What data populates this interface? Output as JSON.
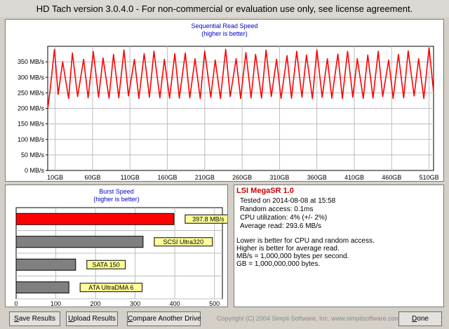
{
  "window": {
    "title": "HD Tach version 3.0.4.0  - For non-commercial or evaluation use only, see license agreement."
  },
  "sequential": {
    "title": "Sequential Read Speed",
    "subtitle": "(higher is better)"
  },
  "burst": {
    "title": "Burst Speed",
    "subtitle": "(higher is better)"
  },
  "chart_data": [
    {
      "type": "line",
      "title": "Sequential Read Speed",
      "subtitle": "(higher is better)",
      "x_ticks": [
        "10GB",
        "60GB",
        "110GB",
        "160GB",
        "210GB",
        "260GB",
        "310GB",
        "360GB",
        "410GB",
        "460GB",
        "510GB"
      ],
      "y_ticks": [
        "0 MB/s",
        "50 MB/s",
        "100 MB/s",
        "150 MB/s",
        "200 MB/s",
        "250 MB/s",
        "300 MB/s",
        "350 MB/s"
      ],
      "xlim": [
        0,
        516
      ],
      "ylim": [
        0,
        400
      ],
      "grid": true,
      "series": [
        {
          "color": "#ff0000",
          "x": [
            0,
            3,
            9,
            14,
            20,
            28,
            33,
            40,
            48,
            54,
            61,
            68,
            74,
            82,
            88,
            95,
            102,
            108,
            116,
            122,
            129,
            136,
            142,
            150,
            156,
            163,
            170,
            176,
            184,
            190,
            197,
            204,
            210,
            218,
            224,
            231,
            238,
            244,
            252,
            258,
            265,
            272,
            278,
            286,
            292,
            299,
            306,
            312,
            320,
            326,
            333,
            340,
            346,
            354,
            360,
            367,
            374,
            380,
            388,
            394,
            401,
            408,
            414,
            422,
            428,
            435,
            442,
            448,
            456,
            462,
            469,
            476,
            482,
            490,
            496,
            503,
            510,
            516
          ],
          "y": [
            198,
            255,
            390,
            245,
            350,
            232,
            378,
            238,
            358,
            234,
            383,
            236,
            362,
            233,
            374,
            234,
            388,
            240,
            358,
            232,
            376,
            236,
            384,
            234,
            358,
            233,
            376,
            233,
            378,
            234,
            360,
            232,
            384,
            236,
            356,
            232,
            390,
            238,
            360,
            232,
            380,
            234,
            374,
            233,
            388,
            238,
            358,
            232,
            370,
            233,
            384,
            236,
            372,
            232,
            388,
            236,
            360,
            233,
            375,
            232,
            384,
            236,
            360,
            232,
            372,
            233,
            384,
            238,
            356,
            232,
            374,
            234,
            385,
            240,
            360,
            232,
            395,
            253
          ]
        }
      ]
    },
    {
      "type": "bar",
      "orientation": "horizontal",
      "title": "Burst Speed",
      "subtitle": "(higher is better)",
      "x_ticks": [
        "0",
        "100",
        "200",
        "300",
        "400",
        "500"
      ],
      "xlim": [
        0,
        520
      ],
      "grid": true,
      "categories": [
        "397.8 MB/s",
        "SCSI Ultra320",
        "SATA 150",
        "ATA UltraDMA 6"
      ],
      "values": [
        397.8,
        320,
        150,
        133
      ],
      "colors": [
        "#ff0000",
        "#808080",
        "#808080",
        "#808080"
      ]
    }
  ],
  "info": {
    "drive_name": "LSI MegaSR 1.0",
    "tested_on": "Tested on 2014-08-08 at 15:58",
    "random_access": "Random access: 0.1ms",
    "cpu_utilization": "CPU utilization: 4% (+/- 2%)",
    "average_read": "Average read: 293.6 MB/s",
    "note1": "Lower is better for CPU and random access.",
    "note2": "Higher is better for average read.",
    "note3": "MB/s = 1,000,000 bytes per second.",
    "note4": "GB = 1,000,000,000 bytes."
  },
  "buttons": {
    "save_mnemonic": "S",
    "save_rest": "ave Results",
    "upload_mnemonic": "U",
    "upload_rest": "pload Results",
    "compare_mnemonic": "C",
    "compare_rest": "ompare Another Drive",
    "done_mnemonic": "D",
    "done_rest": "one"
  },
  "copyright": "Copyright (C) 2004 Simpli Software, Inc. www.simplisoftware.com"
}
